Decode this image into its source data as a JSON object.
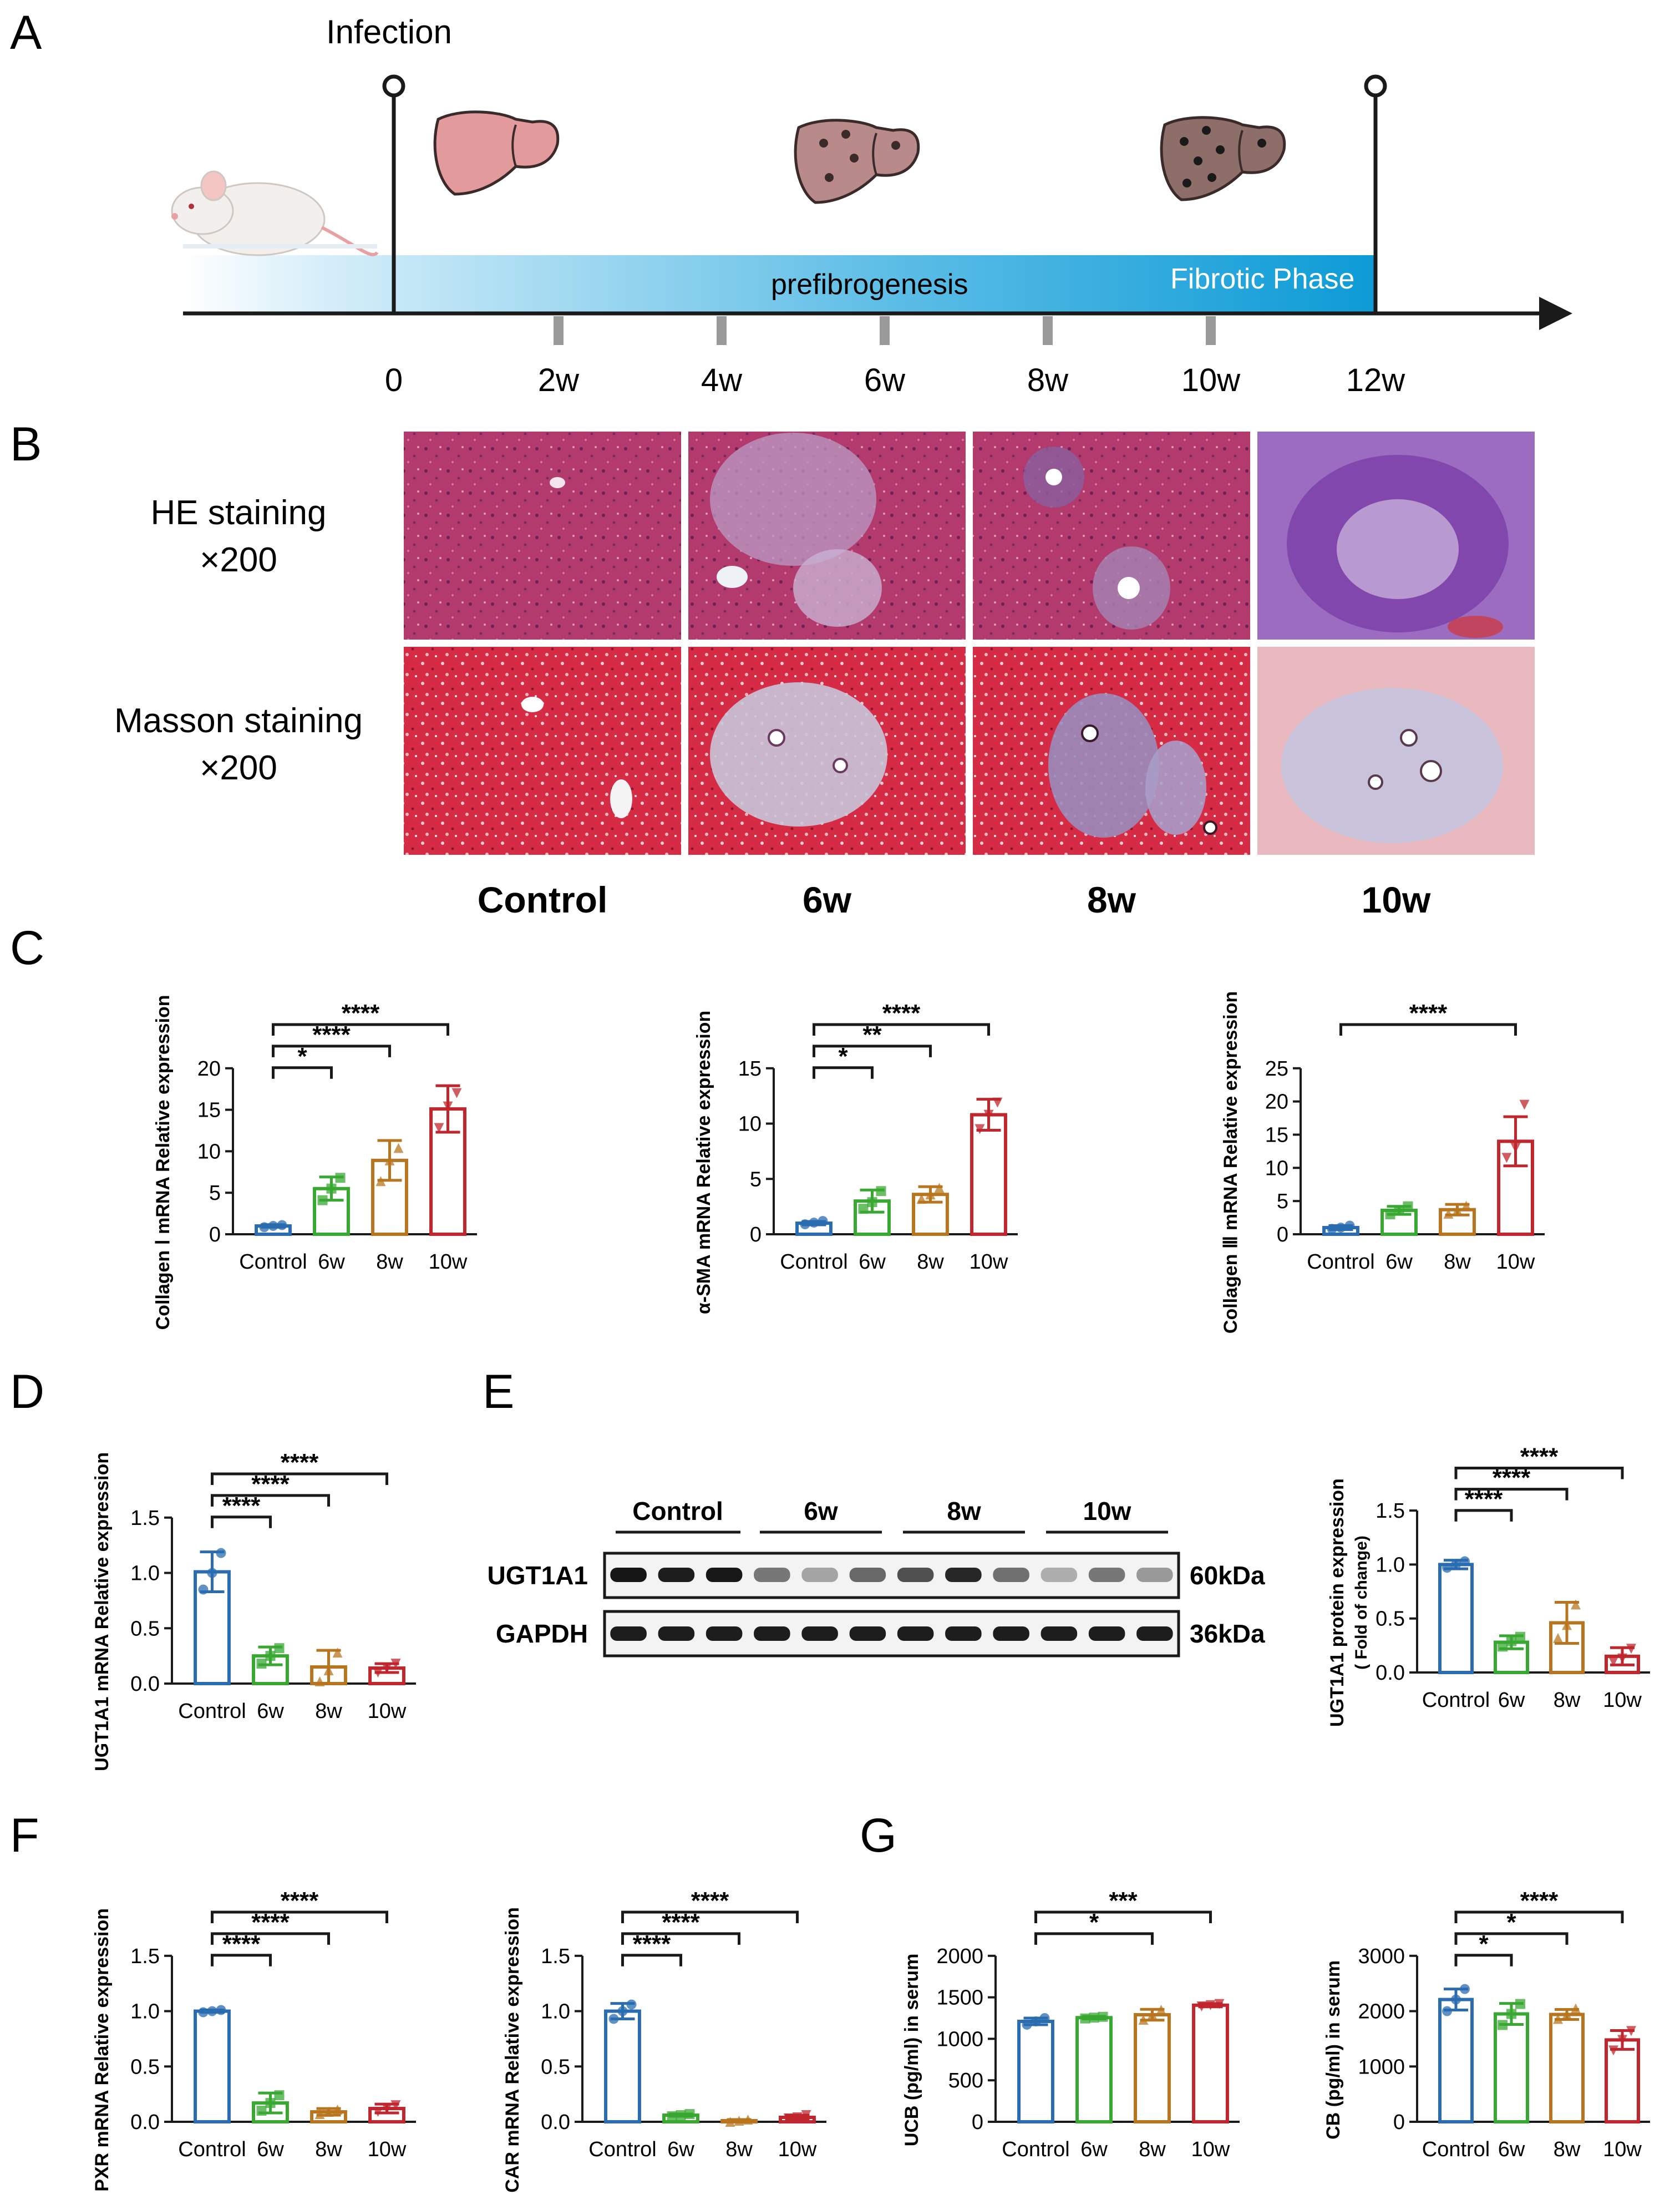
{
  "panel_labels": [
    "A",
    "B",
    "C",
    "D",
    "E",
    "F",
    "G"
  ],
  "colors": {
    "control": "#2b6cb0",
    "w6": "#38a832",
    "w8": "#b8751f",
    "w10": "#c0262d",
    "timeline_blue": "#1a9bd4",
    "axis": "#1a1a1a",
    "liver_healthy": "#e39a9d",
    "liver_early": "#b88a8a",
    "liver_late": "#8e6e68"
  },
  "timeline": {
    "infection_label": "Infection",
    "phase1_label": "prefibrogenesis",
    "phase2_label": "Fibrotic Phase",
    "ticks": [
      "0",
      "2w",
      "4w",
      "6w",
      "8w",
      "10w",
      "12w"
    ]
  },
  "staining": {
    "row_labels": [
      {
        "line1": "HE staining",
        "line2": "×200"
      },
      {
        "line1": "Masson staining",
        "line2": "×200"
      }
    ],
    "column_labels": [
      "Control",
      "6w",
      "8w",
      "10w"
    ]
  },
  "western_blot": {
    "groups": [
      "Control",
      "6w",
      "8w",
      "10w"
    ],
    "rows": [
      {
        "name": "UGT1A1",
        "size": "60kDa"
      },
      {
        "name": "GAPDH",
        "size": "36kDa"
      }
    ],
    "ugt_band_intensity": [
      0.98,
      0.95,
      0.97,
      0.55,
      0.35,
      0.62,
      0.72,
      0.9,
      0.58,
      0.3,
      0.55,
      0.4
    ]
  },
  "chart_data": [
    {
      "id": "C1",
      "type": "bar",
      "title": "",
      "ylabel": "Collagen Ⅰ mRNA Relative expression",
      "categories": [
        "Control",
        "6w",
        "8w",
        "10w"
      ],
      "values": [
        1.0,
        5.5,
        8.9,
        15.1
      ],
      "errors": [
        0.15,
        1.4,
        2.4,
        2.8
      ],
      "points": [
        [
          0.85,
          1.0,
          1.1
        ],
        [
          4.1,
          5.5,
          6.8
        ],
        [
          6.4,
          8.9,
          10.4
        ],
        [
          12.8,
          15.4,
          17.0
        ]
      ],
      "ylim": [
        0,
        20
      ],
      "yticks": [
        0,
        5,
        10,
        15,
        20
      ],
      "significance": [
        {
          "from": 0,
          "to": 1,
          "label": "*"
        },
        {
          "from": 0,
          "to": 2,
          "label": "****"
        },
        {
          "from": 0,
          "to": 3,
          "label": "****"
        }
      ]
    },
    {
      "id": "C2",
      "type": "bar",
      "title": "",
      "ylabel": "α-SMA mRNA Relative expression",
      "categories": [
        "Control",
        "6w",
        "8w",
        "10w"
      ],
      "values": [
        1.0,
        3.0,
        3.6,
        10.8
      ],
      "errors": [
        0.15,
        1.0,
        0.7,
        1.4
      ],
      "points": [
        [
          0.9,
          1.05,
          1.2
        ],
        [
          2.3,
          2.9,
          3.9
        ],
        [
          3.2,
          3.6,
          4.2
        ],
        [
          9.5,
          10.8,
          11.9
        ]
      ],
      "ylim": [
        0,
        15
      ],
      "yticks": [
        0,
        5,
        10,
        15
      ],
      "significance": [
        {
          "from": 0,
          "to": 1,
          "label": "*"
        },
        {
          "from": 0,
          "to": 2,
          "label": "**"
        },
        {
          "from": 0,
          "to": 3,
          "label": "****"
        }
      ]
    },
    {
      "id": "C3",
      "type": "bar",
      "title": "",
      "ylabel": "Collagen Ⅲ mRNA Relative expression",
      "categories": [
        "Control",
        "6w",
        "8w",
        "10w"
      ],
      "values": [
        1.0,
        3.6,
        3.7,
        14.0
      ],
      "errors": [
        0.3,
        0.6,
        0.8,
        3.7
      ],
      "points": [
        [
          0.8,
          1.0,
          1.3
        ],
        [
          3.0,
          3.6,
          4.2
        ],
        [
          3.1,
          3.6,
          4.3
        ],
        [
          11.5,
          13.0,
          19.5
        ]
      ],
      "ylim": [
        0,
        25
      ],
      "yticks": [
        0,
        5,
        10,
        15,
        20,
        25
      ],
      "significance": [
        {
          "from": 0,
          "to": 3,
          "label": "****"
        }
      ]
    },
    {
      "id": "D",
      "type": "bar",
      "title": "",
      "ylabel": "UGT1A1 mRNA Relative expression",
      "categories": [
        "Control",
        "6w",
        "8w",
        "10w"
      ],
      "values": [
        1.01,
        0.25,
        0.15,
        0.14
      ],
      "errors": [
        0.18,
        0.08,
        0.15,
        0.04
      ],
      "points": [
        [
          0.85,
          1.0,
          1.18
        ],
        [
          0.18,
          0.25,
          0.32
        ],
        [
          0.02,
          0.12,
          0.28
        ],
        [
          0.1,
          0.14,
          0.18
        ]
      ],
      "ylim": [
        0,
        1.5
      ],
      "yticks": [
        0.0,
        0.5,
        1.0,
        1.5
      ],
      "significance": [
        {
          "from": 0,
          "to": 1,
          "label": "****"
        },
        {
          "from": 0,
          "to": 2,
          "label": "****"
        },
        {
          "from": 0,
          "to": 3,
          "label": "****"
        }
      ]
    },
    {
      "id": "E",
      "type": "bar",
      "title": "",
      "ylabel": "UGT1A1 protein expression",
      "ylabel2": "( Fold of change)",
      "categories": [
        "Control",
        "6w",
        "8w",
        "10w"
      ],
      "values": [
        1.0,
        0.28,
        0.46,
        0.15
      ],
      "errors": [
        0.04,
        0.06,
        0.19,
        0.08
      ],
      "points": [
        [
          0.97,
          1.0,
          1.03
        ],
        [
          0.24,
          0.29,
          0.33
        ],
        [
          0.32,
          0.44,
          0.63
        ],
        [
          0.1,
          0.13,
          0.22
        ]
      ],
      "ylim": [
        0,
        1.5
      ],
      "yticks": [
        0.0,
        0.5,
        1.0,
        1.5
      ],
      "significance": [
        {
          "from": 0,
          "to": 1,
          "label": "****"
        },
        {
          "from": 0,
          "to": 2,
          "label": "****"
        },
        {
          "from": 0,
          "to": 3,
          "label": "****"
        }
      ]
    },
    {
      "id": "F1",
      "type": "bar",
      "title": "",
      "ylabel": "PXR mRNA Relative expression",
      "categories": [
        "Control",
        "6w",
        "8w",
        "10w"
      ],
      "values": [
        1.0,
        0.17,
        0.09,
        0.12
      ],
      "errors": [
        0.01,
        0.09,
        0.03,
        0.04
      ],
      "points": [
        [
          0.99,
          1.0,
          1.01
        ],
        [
          0.1,
          0.17,
          0.24
        ],
        [
          0.07,
          0.09,
          0.11
        ],
        [
          0.09,
          0.12,
          0.15
        ]
      ],
      "ylim": [
        0,
        1.5
      ],
      "yticks": [
        0.0,
        0.5,
        1.0,
        1.5
      ],
      "significance": [
        {
          "from": 0,
          "to": 1,
          "label": "****"
        },
        {
          "from": 0,
          "to": 2,
          "label": "****"
        },
        {
          "from": 0,
          "to": 3,
          "label": "****"
        }
      ]
    },
    {
      "id": "F2",
      "type": "bar",
      "title": "",
      "ylabel": "CAR mRNA Relative expression",
      "categories": [
        "Control",
        "6w",
        "8w",
        "10w"
      ],
      "values": [
        1.0,
        0.06,
        0.01,
        0.04
      ],
      "errors": [
        0.07,
        0.01,
        0.01,
        0.02
      ],
      "points": [
        [
          0.93,
          1.0,
          1.06
        ],
        [
          0.05,
          0.06,
          0.07
        ],
        [
          0.0,
          0.01,
          0.02
        ],
        [
          0.03,
          0.04,
          0.06
        ]
      ],
      "ylim": [
        0,
        1.5
      ],
      "yticks": [
        0.0,
        0.5,
        1.0,
        1.5
      ],
      "significance": [
        {
          "from": 0,
          "to": 1,
          "label": "****"
        },
        {
          "from": 0,
          "to": 2,
          "label": "****"
        },
        {
          "from": 0,
          "to": 3,
          "label": "****"
        }
      ]
    },
    {
      "id": "G1",
      "type": "bar",
      "title": "",
      "ylabel": "UCB (pg/ml) in serum",
      "categories": [
        "Control",
        "6w",
        "8w",
        "10w"
      ],
      "values": [
        1210,
        1255,
        1290,
        1405
      ],
      "errors": [
        40,
        15,
        65,
        20
      ],
      "points": [
        [
          1170,
          1210,
          1250
        ],
        [
          1245,
          1255,
          1265
        ],
        [
          1230,
          1290,
          1350
        ],
        [
          1390,
          1405,
          1420
        ]
      ],
      "ylim": [
        0,
        2000
      ],
      "yticks": [
        0,
        500,
        1000,
        1500,
        2000
      ],
      "significance": [
        {
          "from": 0,
          "to": 2,
          "label": "*"
        },
        {
          "from": 0,
          "to": 3,
          "label": "***"
        }
      ]
    },
    {
      "id": "G2",
      "type": "bar",
      "title": "",
      "ylabel": "CB (pg/ml) in serum",
      "categories": [
        "Control",
        "6w",
        "8w",
        "10w"
      ],
      "values": [
        2210,
        1950,
        1940,
        1480
      ],
      "errors": [
        190,
        190,
        90,
        170
      ],
      "points": [
        [
          2000,
          2210,
          2400
        ],
        [
          1750,
          1950,
          2130
        ],
        [
          1860,
          1940,
          2050
        ],
        [
          1290,
          1480,
          1640
        ]
      ],
      "ylim": [
        0,
        3000
      ],
      "yticks": [
        0,
        1000,
        2000,
        3000
      ],
      "significance": [
        {
          "from": 0,
          "to": 1,
          "label": "*"
        },
        {
          "from": 0,
          "to": 2,
          "label": "*"
        },
        {
          "from": 0,
          "to": 3,
          "label": "****"
        }
      ]
    }
  ]
}
